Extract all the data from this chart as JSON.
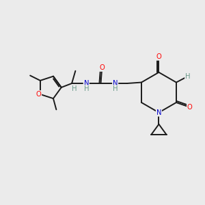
{
  "bg_color": "#ebebeb",
  "bond_color": "#1a1a1a",
  "atom_colors": {
    "O": "#ff0000",
    "N": "#0000cc",
    "H": "#6a9a8a",
    "C": "#1a1a1a"
  },
  "font_size": 7.2,
  "bond_width": 1.4
}
